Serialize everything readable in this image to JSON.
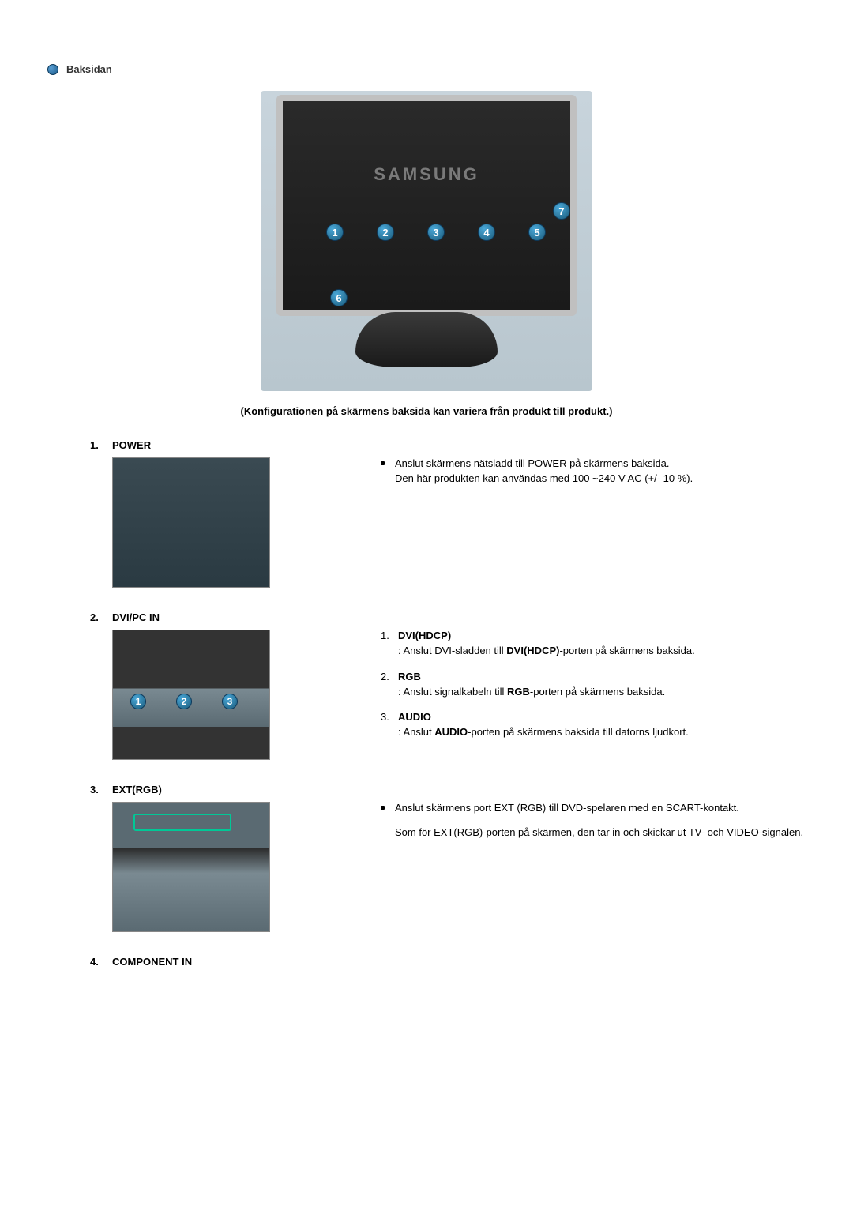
{
  "header": {
    "title": "Baksidan"
  },
  "main_figure": {
    "brand_text": "SAMSUNG",
    "callouts": [
      "1",
      "2",
      "3",
      "4",
      "5"
    ],
    "callout6": "6",
    "callout7": "7",
    "caption": "(Konfigurationen på skärmens baksida kan variera från produkt till produkt.)",
    "colors": {
      "bezel": "#c0c0c0",
      "panel": "#1a1a1a",
      "background": "#c8d4dc",
      "callout_fill": "#2a86b6",
      "callout_text": "#ffffff"
    }
  },
  "items": [
    {
      "num": "1.",
      "title": "POWER",
      "thumb_type": "power",
      "list_kind": "bullet",
      "entries": [
        {
          "body_html": "Anslut skärmens nätsladd till POWER på skärmens baksida.\nDen här produkten kan användas med 100 ~240 V AC (+/- 10 %)."
        }
      ]
    },
    {
      "num": "2.",
      "title": "DVI/PC IN",
      "thumb_type": "dvi",
      "thumb_callouts": [
        "1",
        "2",
        "3"
      ],
      "list_kind": "numbered",
      "entries": [
        {
          "sub_title": "DVI(HDCP)",
          "body_html": ": Anslut DVI-sladden till <b>DVI(HDCP)</b>-porten på skärmens baksida."
        },
        {
          "sub_title": "RGB",
          "body_html": ": Anslut signalkabeln till <b>RGB</b>-porten på skärmens baksida."
        },
        {
          "sub_title": "AUDIO",
          "body_html": ": Anslut <b>AUDIO</b>-porten på skärmens baksida till datorns ljudkort."
        }
      ]
    },
    {
      "num": "3.",
      "title": "EXT(RGB)",
      "thumb_type": "ext",
      "list_kind": "bullet",
      "entries": [
        {
          "body_html": "Anslut skärmens port EXT (RGB) till DVD-spelaren med en SCART-kontakt."
        }
      ],
      "extra_para": "Som för EXT(RGB)-porten på skärmen, den tar in och skickar ut TV- och VIDEO-signalen."
    },
    {
      "num": "4.",
      "title": "COMPONENT IN",
      "thumb_type": "none",
      "list_kind": "none",
      "entries": []
    }
  ]
}
